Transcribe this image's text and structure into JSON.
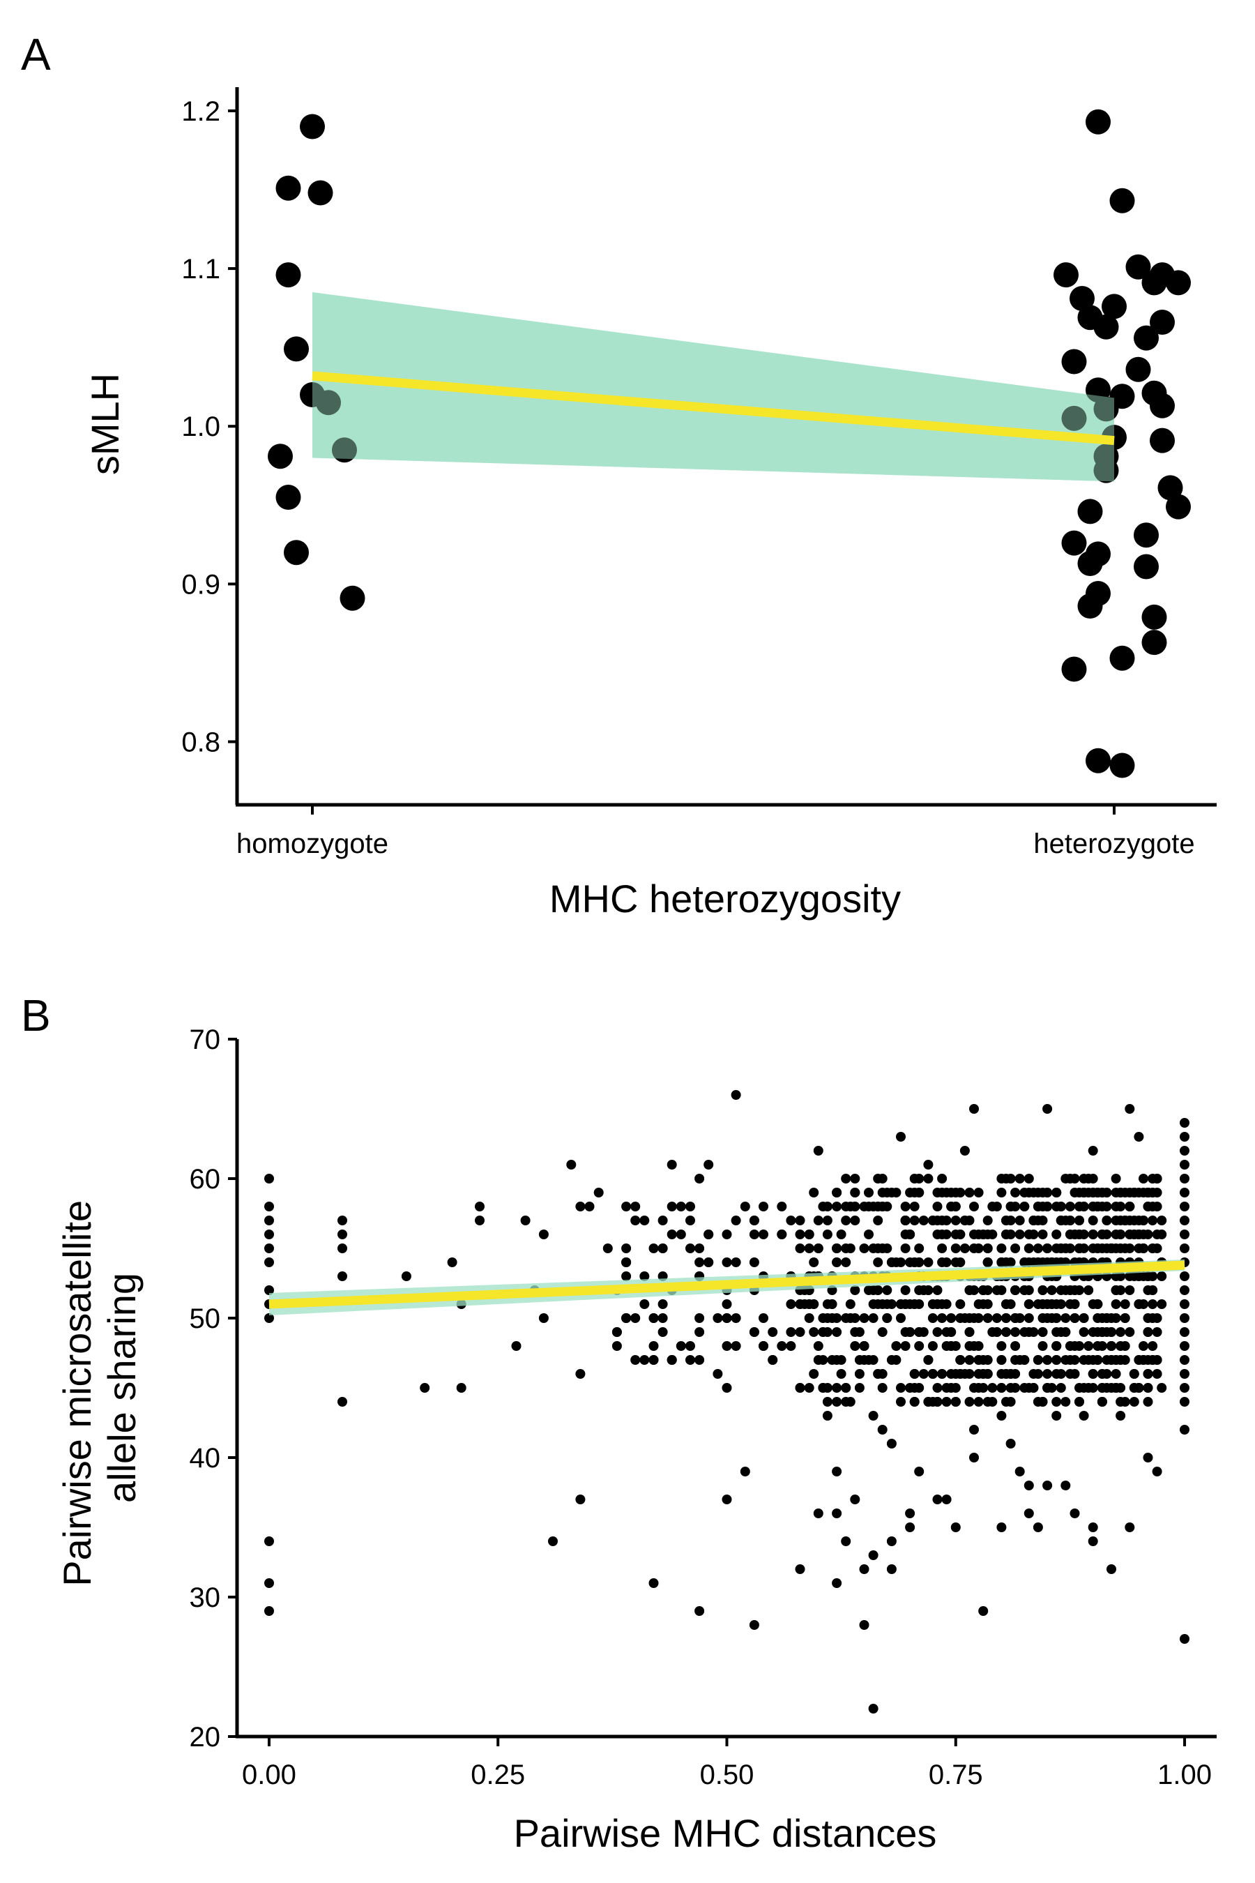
{
  "chart_data": [
    {
      "type": "scatter",
      "panel": "A",
      "xlabel": "MHC heterozygosity",
      "ylabel": "sMLH",
      "categories": [
        "homozygote",
        "heterozygote"
      ],
      "ylim": [
        0.76,
        1.215
      ],
      "yticks": [
        0.8,
        0.9,
        1.0,
        1.1,
        1.2
      ],
      "ytick_labels": [
        "0.8",
        "0.9",
        "1.0",
        "1.1",
        "1.2"
      ],
      "grid": false,
      "colors": {
        "points": "#000000",
        "fit_line": "#f5e62a",
        "ribbon": "#9fe0c6"
      },
      "fit": {
        "x": [
          0,
          1
        ],
        "y": [
          1.032,
          0.991
        ],
        "lower": [
          0.98,
          0.965
        ],
        "upper": [
          1.085,
          1.018
        ]
      },
      "points": [
        {
          "x": 0.0,
          "y": 1.19
        },
        {
          "x": -0.03,
          "y": 1.151
        },
        {
          "x": 0.01,
          "y": 1.148
        },
        {
          "x": -0.03,
          "y": 1.096
        },
        {
          "x": -0.02,
          "y": 1.049
        },
        {
          "x": 0.0,
          "y": 1.02
        },
        {
          "x": 0.02,
          "y": 1.015
        },
        {
          "x": -0.04,
          "y": 0.981
        },
        {
          "x": 0.04,
          "y": 0.985
        },
        {
          "x": -0.03,
          "y": 0.955
        },
        {
          "x": -0.02,
          "y": 0.92
        },
        {
          "x": 0.05,
          "y": 0.891
        },
        {
          "x": 0.98,
          "y": 1.193
        },
        {
          "x": 1.01,
          "y": 1.143
        },
        {
          "x": 1.03,
          "y": 1.101
        },
        {
          "x": 0.94,
          "y": 1.096
        },
        {
          "x": 1.06,
          "y": 1.096
        },
        {
          "x": 1.08,
          "y": 1.091
        },
        {
          "x": 1.05,
          "y": 1.091
        },
        {
          "x": 0.96,
          "y": 1.081
        },
        {
          "x": 1.0,
          "y": 1.076
        },
        {
          "x": 0.97,
          "y": 1.069
        },
        {
          "x": 1.06,
          "y": 1.066
        },
        {
          "x": 0.99,
          "y": 1.063
        },
        {
          "x": 1.04,
          "y": 1.056
        },
        {
          "x": 0.95,
          "y": 1.041
        },
        {
          "x": 1.03,
          "y": 1.036
        },
        {
          "x": 0.98,
          "y": 1.023
        },
        {
          "x": 1.05,
          "y": 1.021
        },
        {
          "x": 1.01,
          "y": 1.019
        },
        {
          "x": 1.06,
          "y": 1.013
        },
        {
          "x": 0.99,
          "y": 1.011
        },
        {
          "x": 0.95,
          "y": 1.005
        },
        {
          "x": 1.0,
          "y": 0.993
        },
        {
          "x": 1.06,
          "y": 0.991
        },
        {
          "x": 0.99,
          "y": 0.981
        },
        {
          "x": 0.99,
          "y": 0.972
        },
        {
          "x": 1.07,
          "y": 0.961
        },
        {
          "x": 1.08,
          "y": 0.949
        },
        {
          "x": 0.97,
          "y": 0.946
        },
        {
          "x": 1.04,
          "y": 0.931
        },
        {
          "x": 0.95,
          "y": 0.926
        },
        {
          "x": 0.98,
          "y": 0.919
        },
        {
          "x": 0.97,
          "y": 0.913
        },
        {
          "x": 1.04,
          "y": 0.911
        },
        {
          "x": 0.98,
          "y": 0.894
        },
        {
          "x": 0.97,
          "y": 0.886
        },
        {
          "x": 1.05,
          "y": 0.879
        },
        {
          "x": 1.05,
          "y": 0.863
        },
        {
          "x": 1.01,
          "y": 0.853
        },
        {
          "x": 0.95,
          "y": 0.846
        },
        {
          "x": 0.98,
          "y": 0.788
        },
        {
          "x": 1.01,
          "y": 0.785
        }
      ]
    },
    {
      "type": "scatter",
      "panel": "B",
      "xlabel": "Pairwise MHC distances",
      "ylabel": "Pairwise microsatellite allele sharing",
      "ylabel_lines": [
        "Pairwise microsatellite",
        "allele sharing"
      ],
      "xlim": [
        -0.035,
        1.035
      ],
      "ylim": [
        20,
        70
      ],
      "xticks": [
        0.0,
        0.25,
        0.5,
        0.75,
        1.0
      ],
      "xtick_labels": [
        "0.00",
        "0.25",
        "0.50",
        "0.75",
        "1.00"
      ],
      "yticks": [
        20,
        30,
        40,
        50,
        60,
        70
      ],
      "ytick_labels": [
        "20",
        "30",
        "40",
        "50",
        "60",
        "70"
      ],
      "grid": false,
      "colors": {
        "points": "#000000",
        "fit_line": "#f5e62a",
        "ribbon": "#9fe0c6"
      },
      "fit": {
        "x": [
          0,
          1
        ],
        "y": [
          51.0,
          53.8
        ],
        "lower": [
          50.2,
          53.4
        ],
        "upper": [
          51.8,
          54.2
        ]
      },
      "bulk_region": {
        "x": [
          0.58,
          0.97
        ],
        "y": [
          44,
          60
        ]
      },
      "points": [
        {
          "x": 0.0,
          "y": 60
        },
        {
          "x": 0.0,
          "y": 58
        },
        {
          "x": 0.0,
          "y": 57
        },
        {
          "x": 0.0,
          "y": 56
        },
        {
          "x": 0.0,
          "y": 55
        },
        {
          "x": 0.0,
          "y": 54
        },
        {
          "x": 0.0,
          "y": 52
        },
        {
          "x": 0.0,
          "y": 51
        },
        {
          "x": 0.0,
          "y": 50
        },
        {
          "x": 0.0,
          "y": 34
        },
        {
          "x": 0.0,
          "y": 31
        },
        {
          "x": 0.0,
          "y": 29
        },
        {
          "x": 0.08,
          "y": 57
        },
        {
          "x": 0.08,
          "y": 56
        },
        {
          "x": 0.08,
          "y": 55
        },
        {
          "x": 0.08,
          "y": 53
        },
        {
          "x": 0.08,
          "y": 44
        },
        {
          "x": 0.15,
          "y": 53
        },
        {
          "x": 0.17,
          "y": 45
        },
        {
          "x": 0.2,
          "y": 54
        },
        {
          "x": 0.21,
          "y": 51
        },
        {
          "x": 0.21,
          "y": 45
        },
        {
          "x": 0.23,
          "y": 58
        },
        {
          "x": 0.23,
          "y": 57
        },
        {
          "x": 0.27,
          "y": 48
        },
        {
          "x": 0.28,
          "y": 57
        },
        {
          "x": 0.29,
          "y": 52
        },
        {
          "x": 0.3,
          "y": 56
        },
        {
          "x": 0.3,
          "y": 50
        },
        {
          "x": 0.31,
          "y": 34
        },
        {
          "x": 0.33,
          "y": 61
        },
        {
          "x": 0.34,
          "y": 58
        },
        {
          "x": 0.35,
          "y": 58
        },
        {
          "x": 0.34,
          "y": 46
        },
        {
          "x": 0.34,
          "y": 37
        },
        {
          "x": 0.36,
          "y": 59
        },
        {
          "x": 0.37,
          "y": 55
        },
        {
          "x": 0.38,
          "y": 49
        },
        {
          "x": 0.38,
          "y": 48
        },
        {
          "x": 0.39,
          "y": 58
        },
        {
          "x": 0.39,
          "y": 54
        },
        {
          "x": 0.4,
          "y": 58
        },
        {
          "x": 0.41,
          "y": 53
        },
        {
          "x": 0.42,
          "y": 50
        },
        {
          "x": 0.42,
          "y": 48
        },
        {
          "x": 0.43,
          "y": 57
        },
        {
          "x": 0.44,
          "y": 52
        },
        {
          "x": 0.44,
          "y": 47
        },
        {
          "x": 0.44,
          "y": 61
        },
        {
          "x": 0.42,
          "y": 31
        },
        {
          "x": 0.45,
          "y": 56
        },
        {
          "x": 0.46,
          "y": 58
        },
        {
          "x": 0.47,
          "y": 55
        },
        {
          "x": 0.47,
          "y": 60
        },
        {
          "x": 0.48,
          "y": 61
        },
        {
          "x": 0.48,
          "y": 54
        },
        {
          "x": 0.47,
          "y": 29
        },
        {
          "x": 0.49,
          "y": 46
        },
        {
          "x": 0.5,
          "y": 56
        },
        {
          "x": 0.5,
          "y": 52
        },
        {
          "x": 0.5,
          "y": 45
        },
        {
          "x": 0.51,
          "y": 66
        },
        {
          "x": 0.5,
          "y": 37
        },
        {
          "x": 0.52,
          "y": 39
        },
        {
          "x": 0.52,
          "y": 58
        },
        {
          "x": 0.53,
          "y": 49
        },
        {
          "x": 0.53,
          "y": 28
        },
        {
          "x": 0.54,
          "y": 53
        },
        {
          "x": 0.55,
          "y": 47
        },
        {
          "x": 0.56,
          "y": 58
        },
        {
          "x": 0.57,
          "y": 51
        },
        {
          "x": 0.58,
          "y": 32
        },
        {
          "x": 0.6,
          "y": 62
        },
        {
          "x": 0.6,
          "y": 36
        },
        {
          "x": 0.61,
          "y": 43
        },
        {
          "x": 0.62,
          "y": 39
        },
        {
          "x": 0.62,
          "y": 36
        },
        {
          "x": 0.62,
          "y": 31
        },
        {
          "x": 0.63,
          "y": 34
        },
        {
          "x": 0.64,
          "y": 37
        },
        {
          "x": 0.65,
          "y": 28
        },
        {
          "x": 0.65,
          "y": 32
        },
        {
          "x": 0.66,
          "y": 22
        },
        {
          "x": 0.66,
          "y": 33
        },
        {
          "x": 0.66,
          "y": 43
        },
        {
          "x": 0.67,
          "y": 42
        },
        {
          "x": 0.68,
          "y": 41
        },
        {
          "x": 0.68,
          "y": 34
        },
        {
          "x": 0.68,
          "y": 32
        },
        {
          "x": 0.69,
          "y": 63
        },
        {
          "x": 0.7,
          "y": 35
        },
        {
          "x": 0.7,
          "y": 36
        },
        {
          "x": 0.71,
          "y": 39
        },
        {
          "x": 0.72,
          "y": 61
        },
        {
          "x": 0.72,
          "y": 44
        },
        {
          "x": 0.73,
          "y": 37
        },
        {
          "x": 0.74,
          "y": 37
        },
        {
          "x": 0.75,
          "y": 35
        },
        {
          "x": 0.76,
          "y": 62
        },
        {
          "x": 0.77,
          "y": 42
        },
        {
          "x": 0.77,
          "y": 40
        },
        {
          "x": 0.77,
          "y": 65
        },
        {
          "x": 0.78,
          "y": 29
        },
        {
          "x": 0.79,
          "y": 45
        },
        {
          "x": 0.8,
          "y": 43
        },
        {
          "x": 0.8,
          "y": 35
        },
        {
          "x": 0.81,
          "y": 41
        },
        {
          "x": 0.82,
          "y": 39
        },
        {
          "x": 0.83,
          "y": 36
        },
        {
          "x": 0.83,
          "y": 38
        },
        {
          "x": 0.84,
          "y": 35
        },
        {
          "x": 0.85,
          "y": 38
        },
        {
          "x": 0.85,
          "y": 65
        },
        {
          "x": 0.86,
          "y": 43
        },
        {
          "x": 0.87,
          "y": 38
        },
        {
          "x": 0.88,
          "y": 36
        },
        {
          "x": 0.89,
          "y": 43
        },
        {
          "x": 0.9,
          "y": 35
        },
        {
          "x": 0.9,
          "y": 34
        },
        {
          "x": 0.9,
          "y": 62
        },
        {
          "x": 0.91,
          "y": 44
        },
        {
          "x": 0.92,
          "y": 32
        },
        {
          "x": 0.93,
          "y": 43
        },
        {
          "x": 0.94,
          "y": 65
        },
        {
          "x": 0.94,
          "y": 35
        },
        {
          "x": 0.95,
          "y": 63
        },
        {
          "x": 0.96,
          "y": 40
        },
        {
          "x": 0.97,
          "y": 39
        },
        {
          "x": 0.97,
          "y": 60
        },
        {
          "x": 0.97,
          "y": 46
        },
        {
          "x": 0.97,
          "y": 58
        },
        {
          "x": 1.0,
          "y": 64
        },
        {
          "x": 1.0,
          "y": 63
        },
        {
          "x": 1.0,
          "y": 62
        },
        {
          "x": 1.0,
          "y": 61
        },
        {
          "x": 1.0,
          "y": 60
        },
        {
          "x": 1.0,
          "y": 59
        },
        {
          "x": 1.0,
          "y": 58
        },
        {
          "x": 1.0,
          "y": 57
        },
        {
          "x": 1.0,
          "y": 56
        },
        {
          "x": 1.0,
          "y": 55
        },
        {
          "x": 1.0,
          "y": 54
        },
        {
          "x": 1.0,
          "y": 53
        },
        {
          "x": 1.0,
          "y": 52
        },
        {
          "x": 1.0,
          "y": 51
        },
        {
          "x": 1.0,
          "y": 50
        },
        {
          "x": 1.0,
          "y": 49
        },
        {
          "x": 1.0,
          "y": 48
        },
        {
          "x": 1.0,
          "y": 47
        },
        {
          "x": 1.0,
          "y": 46
        },
        {
          "x": 1.0,
          "y": 45
        },
        {
          "x": 1.0,
          "y": 44
        },
        {
          "x": 1.0,
          "y": 42
        },
        {
          "x": 1.0,
          "y": 27
        }
      ]
    }
  ]
}
